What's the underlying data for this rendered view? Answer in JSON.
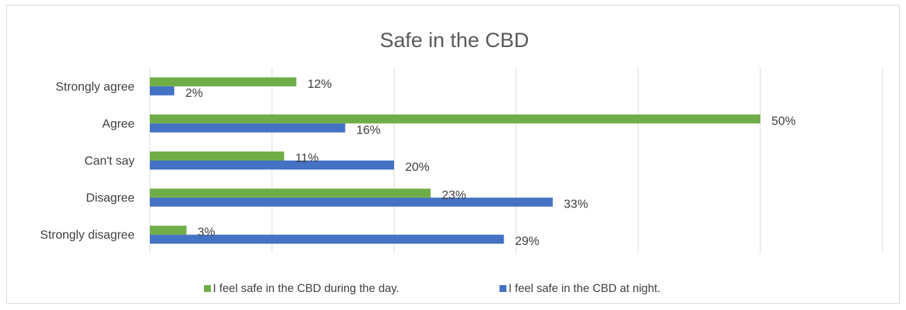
{
  "chart_data": {
    "type": "bar",
    "orientation": "horizontal",
    "title": "Safe in the CBD",
    "categories": [
      "Strongly agree",
      "Agree",
      "Can't say",
      "Disagree",
      "Strongly disagree"
    ],
    "series": [
      {
        "name": "I feel safe in the CBD during the day.",
        "color": "#70ad47",
        "values": [
          12,
          50,
          11,
          23,
          3
        ],
        "labels": [
          "12%",
          "50%",
          "11%",
          "23%",
          "3%"
        ]
      },
      {
        "name": "I feel safe in the CBD at night.",
        "color": "#4472c4",
        "values": [
          2,
          16,
          20,
          33,
          29
        ],
        "labels": [
          "2%",
          "16%",
          "20%",
          "33%",
          "29%"
        ]
      }
    ],
    "xlim": [
      0,
      60
    ],
    "unit": "%",
    "grid": true,
    "axis_labels_visible": false,
    "legend_position": "bottom",
    "gridline_color": "#d9d9d9"
  }
}
